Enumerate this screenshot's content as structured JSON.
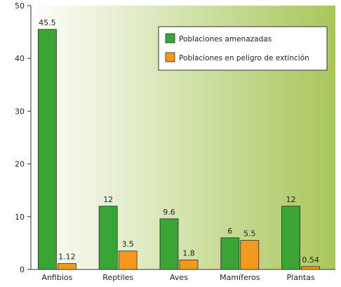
{
  "chart_data": {
    "type": "bar",
    "categories": [
      "Anfibios",
      "Reptiles",
      "Aves",
      "Mamíferos",
      "Plantas"
    ],
    "series": [
      {
        "name": "Poblaciones amenazadas",
        "values": [
          45.5,
          12,
          9.6,
          6,
          12
        ],
        "labels": [
          "45.5",
          "12",
          "9.6",
          "6",
          "12"
        ],
        "color": "#3aa535"
      },
      {
        "name": "Poblaciones en peligro de extinción",
        "values": [
          1.12,
          3.5,
          1.8,
          5.5,
          0.54
        ],
        "labels": [
          "1.12",
          "3.5",
          "1.8",
          "5.5",
          "0.54"
        ],
        "color": "#f39a1e"
      }
    ],
    "y_ticks": [
      "0",
      "10",
      "20",
      "30",
      "40",
      "50"
    ],
    "ylim": [
      0,
      50
    ],
    "grid": false,
    "legend_position": "top-right",
    "background_gradient": [
      "#ffffff",
      "#a9c65a"
    ],
    "bar_outline": "#2a2a2a"
  }
}
